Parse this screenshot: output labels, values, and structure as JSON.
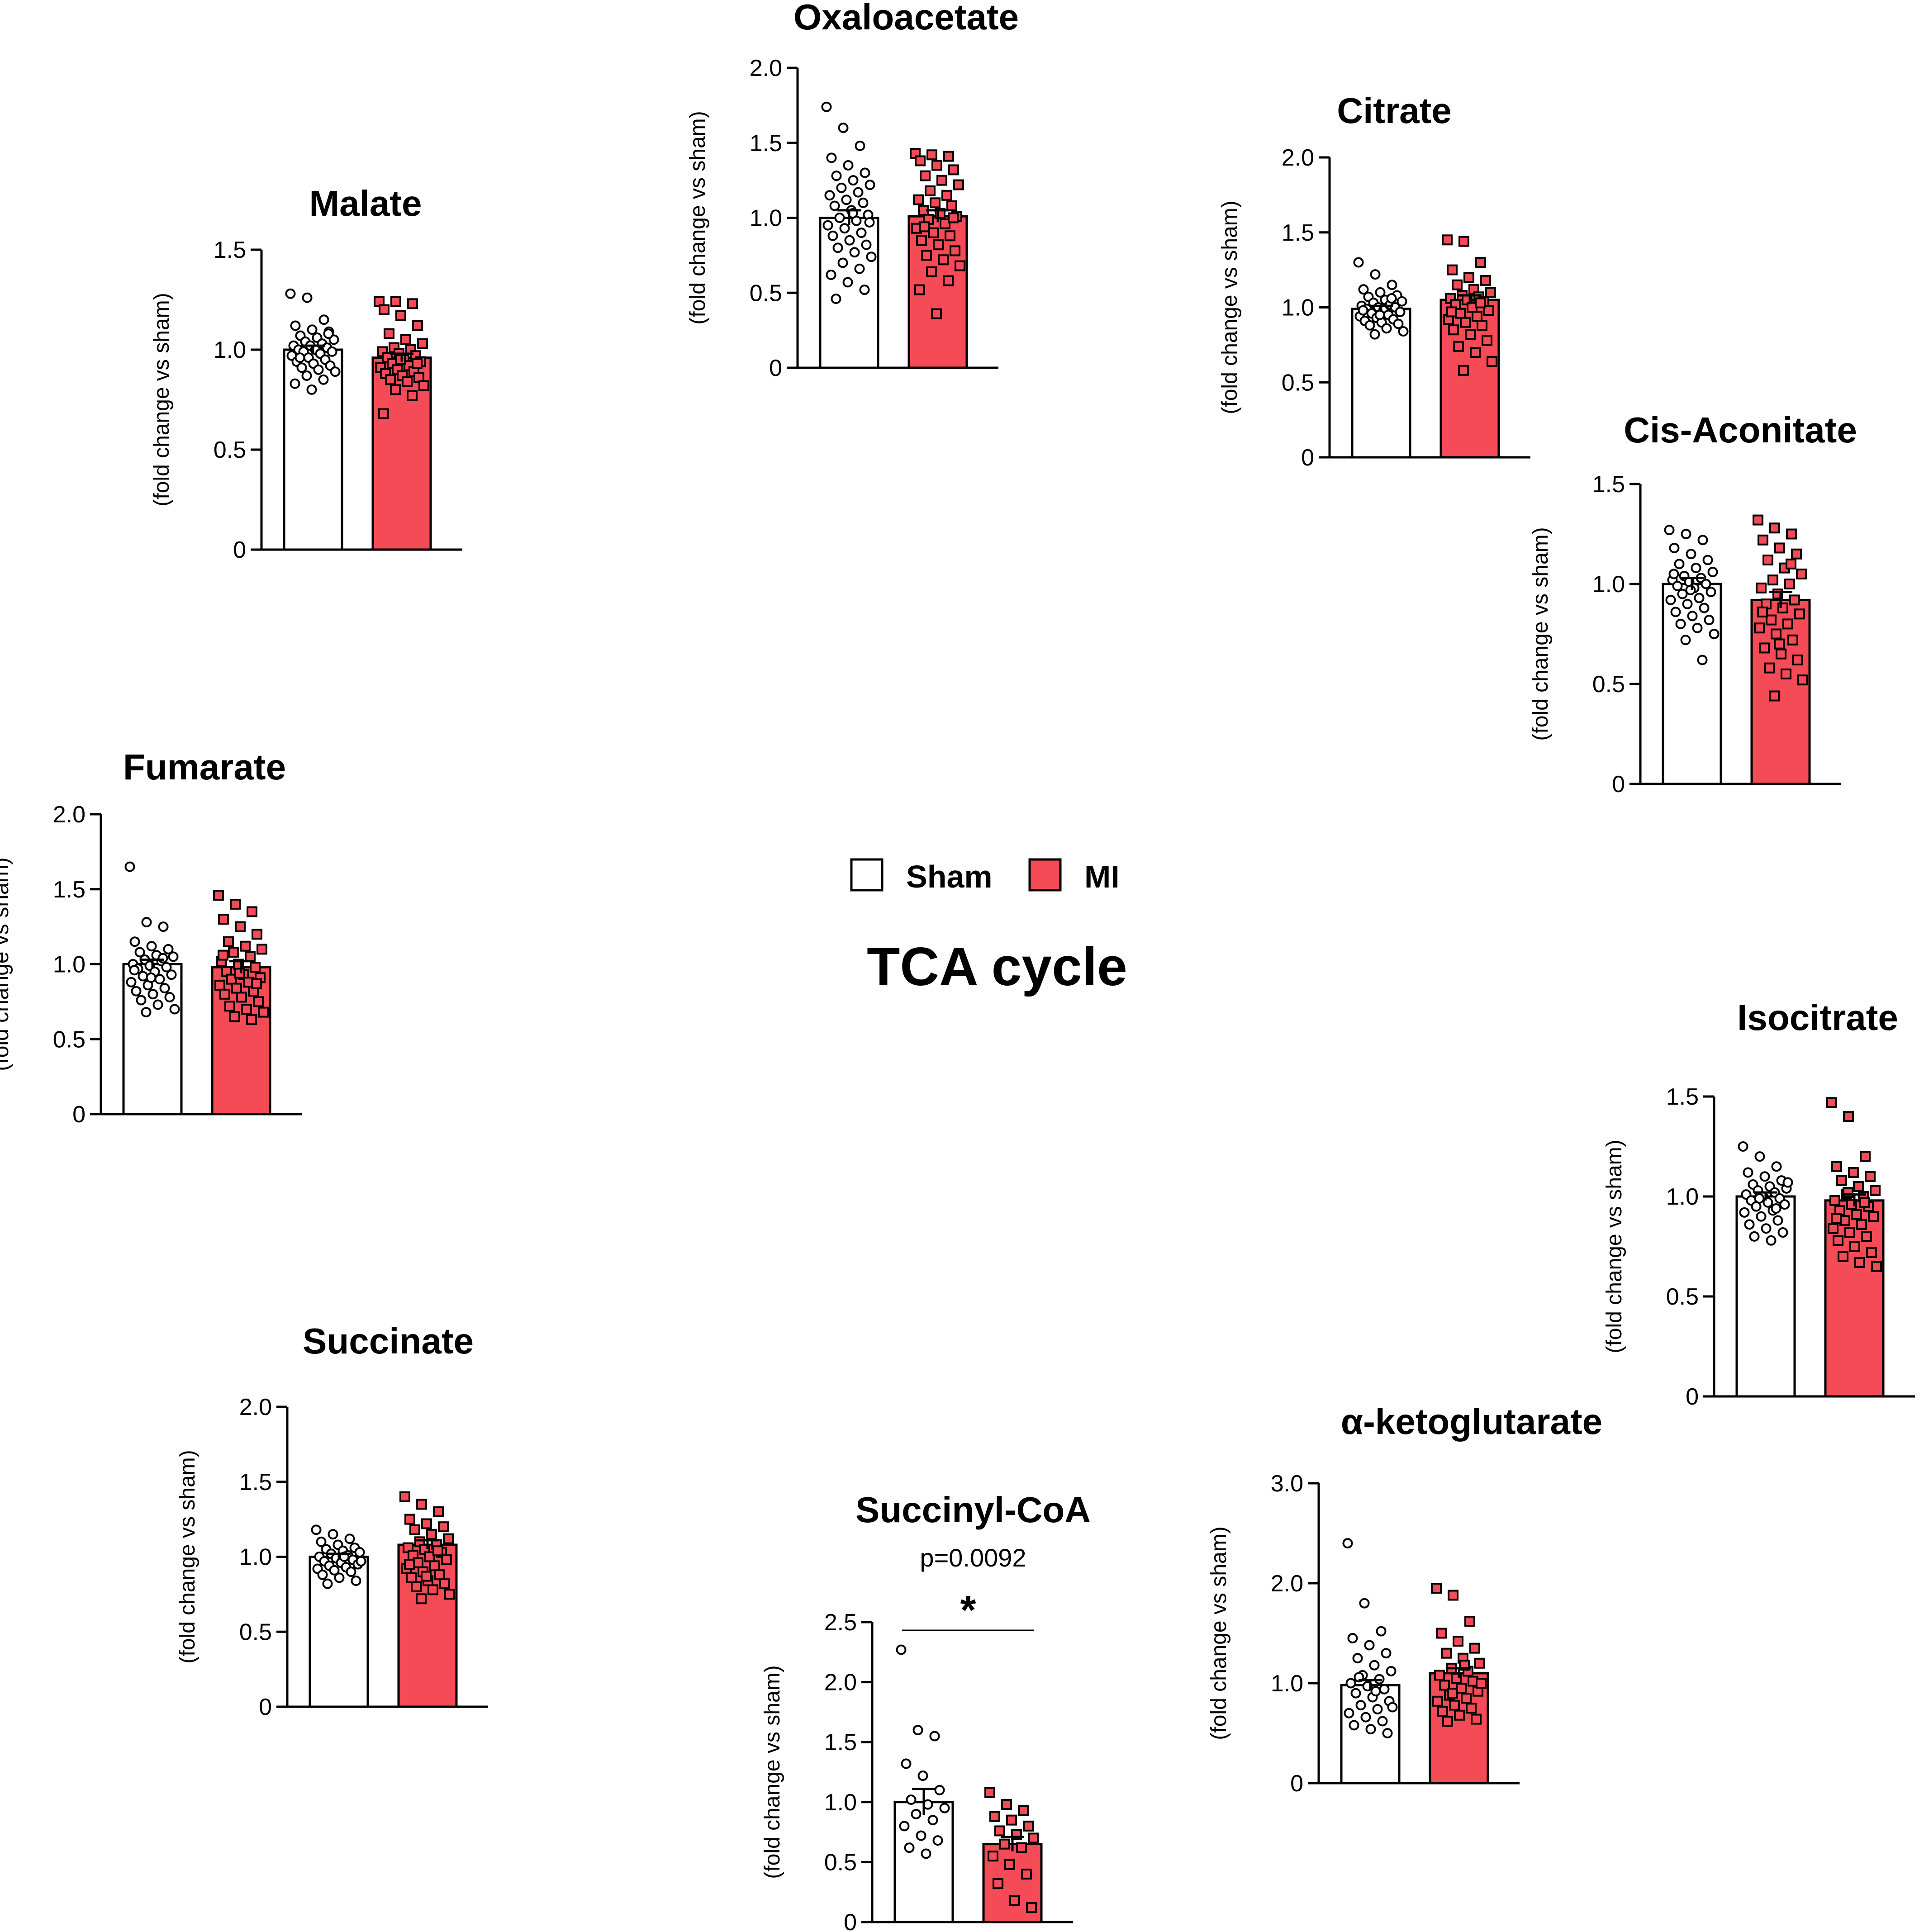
{
  "figure_title": "TCA cycle",
  "legend": [
    {
      "label": "Sham",
      "color": "#ffffff"
    },
    {
      "label": "MI",
      "color": "#f54b57"
    }
  ],
  "colors": {
    "sham": "#ffffff",
    "mi": "#f54b57",
    "stroke": "#000000"
  },
  "chart_data": [
    {
      "type": "bar",
      "title": "Malate",
      "ylabel": "(fold change vs sham)",
      "ylim": [
        0,
        1.5
      ],
      "yticks": [
        0,
        0.5,
        1.0,
        1.5
      ],
      "ytick_labels": [
        "0",
        "0.5",
        "1.0",
        "1.5"
      ],
      "categories": [
        "Sham",
        "MI"
      ],
      "values": [
        1.0,
        0.96
      ],
      "errors": [
        0.02,
        0.02
      ],
      "points": [
        [
          1.28,
          1.26,
          1.15,
          1.12,
          1.1,
          1.09,
          1.07,
          1.06,
          1.05,
          1.04,
          1.03,
          1.02,
          1.02,
          1.01,
          1.0,
          1.0,
          0.99,
          0.99,
          0.98,
          0.97,
          0.96,
          0.95,
          0.94,
          0.93,
          0.92,
          0.91,
          0.9,
          0.89,
          0.87,
          0.85,
          0.83,
          0.8,
          1.08,
          0.96
        ],
        [
          1.24,
          1.24,
          1.23,
          1.2,
          1.17,
          1.12,
          1.08,
          1.05,
          1.03,
          1.01,
          1.0,
          0.99,
          0.98,
          0.97,
          0.96,
          0.95,
          0.94,
          0.93,
          0.92,
          0.91,
          0.9,
          0.89,
          0.88,
          0.87,
          0.86,
          0.85,
          0.84,
          0.82,
          0.8,
          0.77,
          0.68,
          0.95,
          0.93
        ]
      ]
    },
    {
      "type": "bar",
      "title": "Oxaloacetate",
      "ylabel": "(fold change vs sham)",
      "ylim": [
        0,
        2.0
      ],
      "yticks": [
        0,
        0.5,
        1.0,
        1.5,
        2.0
      ],
      "ytick_labels": [
        "0",
        "0.5",
        "1.0",
        "1.5",
        "2.0"
      ],
      "categories": [
        "Sham",
        "MI"
      ],
      "values": [
        1.0,
        1.01
      ],
      "errors": [
        0.05,
        0.04
      ],
      "points": [
        [
          1.74,
          1.6,
          1.48,
          1.4,
          1.35,
          1.3,
          1.28,
          1.25,
          1.22,
          1.2,
          1.17,
          1.15,
          1.12,
          1.1,
          1.08,
          1.05,
          1.02,
          1.0,
          0.98,
          0.95,
          0.93,
          0.9,
          0.88,
          0.85,
          0.82,
          0.8,
          0.77,
          0.74,
          0.7,
          0.66,
          0.62,
          0.57,
          0.52,
          0.46,
          1.03,
          0.97
        ],
        [
          1.43,
          1.42,
          1.41,
          1.38,
          1.35,
          1.32,
          1.28,
          1.25,
          1.22,
          1.18,
          1.15,
          1.12,
          1.1,
          1.08,
          1.05,
          1.03,
          1.01,
          0.99,
          0.96,
          0.93,
          0.9,
          0.88,
          0.85,
          0.82,
          0.78,
          0.75,
          0.72,
          0.68,
          0.64,
          0.58,
          0.52,
          0.36,
          1.0,
          0.94
        ]
      ]
    },
    {
      "type": "bar",
      "title": "Citrate",
      "ylabel": "(fold change vs sham)",
      "ylim": [
        0,
        2.0
      ],
      "yticks": [
        0,
        0.5,
        1.0,
        1.5,
        2.0
      ],
      "ytick_labels": [
        "0",
        "0.5",
        "1.0",
        "1.5",
        "2.0"
      ],
      "categories": [
        "Sham",
        "MI"
      ],
      "values": [
        0.99,
        1.05
      ],
      "errors": [
        0.02,
        0.03
      ],
      "points": [
        [
          1.3,
          1.22,
          1.15,
          1.12,
          1.1,
          1.08,
          1.07,
          1.05,
          1.04,
          1.03,
          1.02,
          1.01,
          1.0,
          1.0,
          0.99,
          0.98,
          0.97,
          0.96,
          0.95,
          0.94,
          0.93,
          0.92,
          0.91,
          0.9,
          0.89,
          0.88,
          0.86,
          0.84,
          0.82,
          1.06,
          0.98,
          0.95
        ],
        [
          1.45,
          1.44,
          1.3,
          1.25,
          1.2,
          1.18,
          1.15,
          1.12,
          1.1,
          1.08,
          1.07,
          1.06,
          1.05,
          1.04,
          1.02,
          1.0,
          0.98,
          0.96,
          0.94,
          0.92,
          0.9,
          0.88,
          0.85,
          0.82,
          0.78,
          0.74,
          0.7,
          0.64,
          0.58,
          1.03,
          0.97
        ]
      ]
    },
    {
      "type": "bar",
      "title": "Cis-Aconitate",
      "ylabel": "(fold change vs sham)",
      "ylim": [
        0,
        1.5
      ],
      "yticks": [
        0,
        0.5,
        1.0,
        1.5
      ],
      "ytick_labels": [
        "0",
        "0.5",
        "1.0",
        "1.5"
      ],
      "categories": [
        "Sham",
        "MI"
      ],
      "values": [
        1.0,
        0.92
      ],
      "errors": [
        0.03,
        0.04
      ],
      "points": [
        [
          1.27,
          1.25,
          1.22,
          1.18,
          1.15,
          1.12,
          1.1,
          1.08,
          1.06,
          1.04,
          1.03,
          1.02,
          1.01,
          1.0,
          0.99,
          0.98,
          0.96,
          0.95,
          0.93,
          0.92,
          0.9,
          0.88,
          0.86,
          0.84,
          0.82,
          0.8,
          0.78,
          0.75,
          0.72,
          0.62,
          1.05,
          0.97
        ],
        [
          1.32,
          1.28,
          1.25,
          1.22,
          1.18,
          1.15,
          1.12,
          1.08,
          1.05,
          1.02,
          1.0,
          0.98,
          0.95,
          0.92,
          0.9,
          0.88,
          0.85,
          0.82,
          0.8,
          0.78,
          0.75,
          0.72,
          0.68,
          0.65,
          0.62,
          0.58,
          0.55,
          0.52,
          0.44,
          1.1,
          0.86,
          0.7
        ]
      ]
    },
    {
      "type": "bar",
      "title": "Fumarate",
      "ylabel": "(fold change vs sham)",
      "ylim": [
        0,
        2.0
      ],
      "yticks": [
        0,
        0.5,
        1.0,
        1.5,
        2.0
      ],
      "ytick_labels": [
        "0",
        "0.5",
        "1.0",
        "1.5",
        "2.0"
      ],
      "categories": [
        "Sham",
        "MI"
      ],
      "values": [
        1.0,
        0.98
      ],
      "errors": [
        0.03,
        0.04
      ],
      "points": [
        [
          1.65,
          1.28,
          1.25,
          1.15,
          1.12,
          1.1,
          1.08,
          1.06,
          1.05,
          1.03,
          1.02,
          1.0,
          0.99,
          0.98,
          0.97,
          0.95,
          0.93,
          0.92,
          0.9,
          0.88,
          0.86,
          0.84,
          0.82,
          0.8,
          0.78,
          0.76,
          0.73,
          0.7,
          0.68,
          1.04,
          0.96,
          0.91
        ],
        [
          1.46,
          1.4,
          1.35,
          1.3,
          1.25,
          1.2,
          1.15,
          1.12,
          1.1,
          1.08,
          1.05,
          1.02,
          1.0,
          0.98,
          0.95,
          0.93,
          0.91,
          0.9,
          0.88,
          0.86,
          0.84,
          0.82,
          0.8,
          0.78,
          0.75,
          0.72,
          0.7,
          0.68,
          0.65,
          0.63,
          1.06,
          0.94,
          0.87
        ]
      ]
    },
    {
      "type": "bar",
      "title": "Isocitrate",
      "ylabel": "(fold change vs sham)",
      "ylim": [
        0,
        1.5
      ],
      "yticks": [
        0,
        0.5,
        1.0,
        1.5
      ],
      "ytick_labels": [
        "0",
        "0.5",
        "1.0",
        "1.5"
      ],
      "categories": [
        "Sham",
        "MI"
      ],
      "values": [
        1.0,
        0.98
      ],
      "errors": [
        0.02,
        0.03
      ],
      "points": [
        [
          1.25,
          1.2,
          1.15,
          1.12,
          1.1,
          1.08,
          1.06,
          1.05,
          1.04,
          1.03,
          1.02,
          1.01,
          1.0,
          0.99,
          0.98,
          0.97,
          0.96,
          0.95,
          0.93,
          0.92,
          0.9,
          0.88,
          0.86,
          0.84,
          0.82,
          0.8,
          0.78,
          1.07,
          0.99,
          0.94
        ],
        [
          1.47,
          1.4,
          1.2,
          1.15,
          1.12,
          1.1,
          1.08,
          1.05,
          1.03,
          1.01,
          1.0,
          0.98,
          0.96,
          0.95,
          0.93,
          0.91,
          0.9,
          0.88,
          0.86,
          0.84,
          0.82,
          0.8,
          0.78,
          0.75,
          0.72,
          0.7,
          0.67,
          0.65,
          1.02,
          0.97,
          0.89
        ]
      ]
    },
    {
      "type": "bar",
      "title": "Succinate",
      "ylabel": "(fold change vs sham)",
      "ylim": [
        0,
        2.0
      ],
      "yticks": [
        0,
        0.5,
        1.0,
        1.5,
        2.0
      ],
      "ytick_labels": [
        "0",
        "0.5",
        "1.0",
        "1.5",
        "2.0"
      ],
      "categories": [
        "Sham",
        "MI"
      ],
      "values": [
        1.0,
        1.08
      ],
      "errors": [
        0.02,
        0.03
      ],
      "points": [
        [
          1.18,
          1.15,
          1.12,
          1.1,
          1.08,
          1.06,
          1.05,
          1.04,
          1.03,
          1.02,
          1.01,
          1.0,
          0.99,
          0.98,
          0.97,
          0.96,
          0.95,
          0.94,
          0.93,
          0.92,
          0.91,
          0.9,
          0.88,
          0.86,
          0.84,
          0.82,
          1.0,
          0.97
        ],
        [
          1.4,
          1.35,
          1.3,
          1.25,
          1.22,
          1.2,
          1.18,
          1.15,
          1.12,
          1.1,
          1.08,
          1.06,
          1.05,
          1.03,
          1.01,
          1.0,
          0.98,
          0.96,
          0.94,
          0.92,
          0.9,
          0.88,
          0.86,
          0.84,
          0.82,
          0.8,
          0.78,
          0.75,
          0.72,
          1.04,
          0.95,
          0.87
        ]
      ]
    },
    {
      "type": "bar",
      "title": "Succinyl-CoA",
      "annotation": "p=0.0092",
      "significance": "*",
      "ylabel": "(fold change vs sham)",
      "ylim": [
        0,
        2.5
      ],
      "yticks": [
        0,
        0.5,
        1.0,
        1.5,
        2.0,
        2.5
      ],
      "ytick_labels": [
        "0",
        "0.5",
        "1.0",
        "1.5",
        "2.0",
        "2.5"
      ],
      "categories": [
        "Sham",
        "MI"
      ],
      "values": [
        1.0,
        0.65
      ],
      "errors": [
        0.11,
        0.06
      ],
      "points": [
        [
          2.27,
          1.6,
          1.55,
          1.32,
          1.22,
          1.1,
          1.02,
          0.98,
          0.95,
          0.9,
          0.85,
          0.8,
          0.72,
          0.68,
          0.62,
          0.57
        ],
        [
          1.08,
          0.98,
          0.93,
          0.88,
          0.85,
          0.8,
          0.76,
          0.73,
          0.7,
          0.65,
          0.62,
          0.55,
          0.48,
          0.4,
          0.32,
          0.18,
          0.12
        ]
      ]
    },
    {
      "type": "bar",
      "title": "α-ketoglutarate",
      "ylabel": "(fold change vs sham)",
      "ylim": [
        0,
        3.0
      ],
      "yticks": [
        0,
        1.0,
        2.0,
        3.0
      ],
      "ytick_labels": [
        "0",
        "1.0",
        "2.0",
        "3.0"
      ],
      "categories": [
        "Sham",
        "MI"
      ],
      "values": [
        0.98,
        1.1
      ],
      "errors": [
        0.05,
        0.05
      ],
      "points": [
        [
          2.4,
          1.8,
          1.52,
          1.45,
          1.38,
          1.3,
          1.25,
          1.18,
          1.12,
          1.08,
          1.04,
          1.0,
          0.97,
          0.94,
          0.9,
          0.86,
          0.82,
          0.78,
          0.74,
          0.7,
          0.66,
          0.62,
          0.58,
          0.54,
          0.5,
          1.06,
          0.92,
          0.76
        ],
        [
          1.95,
          1.88,
          1.62,
          1.5,
          1.42,
          1.35,
          1.3,
          1.25,
          1.2,
          1.15,
          1.12,
          1.08,
          1.05,
          1.02,
          0.98,
          0.95,
          0.92,
          0.88,
          0.85,
          0.82,
          0.78,
          0.75,
          0.72,
          0.68,
          0.64,
          0.62,
          1.18,
          1.0,
          0.9
        ]
      ]
    }
  ]
}
